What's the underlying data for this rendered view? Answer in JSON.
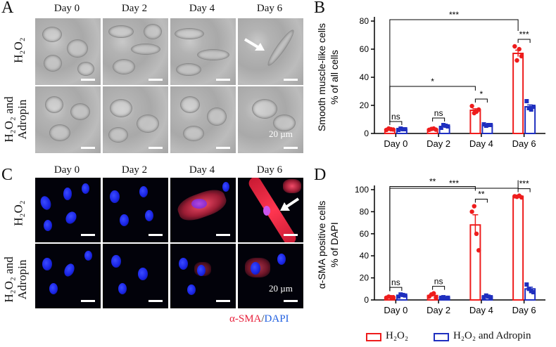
{
  "panels": {
    "A": {
      "letter": "A"
    },
    "B": {
      "letter": "B"
    },
    "C": {
      "letter": "C"
    },
    "D": {
      "letter": "D"
    }
  },
  "days": [
    "Day 0",
    "Day 2",
    "Day 4",
    "Day 6"
  ],
  "row_labels": {
    "h2o2": "H₂O₂",
    "h2o2_adropin_line1": "H₂O₂ and",
    "h2o2_adropin_line2": "Adropin"
  },
  "scale_text": "20 µm",
  "stain_label": {
    "sma": "α-SMA",
    "slash": "/",
    "dapi": "DAPI"
  },
  "colors": {
    "h2o2": "#ee1c1c",
    "adropin": "#1f2fbf",
    "sma": "#e8213c",
    "dapi": "#1a25e6"
  },
  "legend": {
    "h2o2": "H₂O₂",
    "adropin": "H₂O₂ and Adropin"
  },
  "chart_data": [
    {
      "type": "bar",
      "panel": "B",
      "title": "Smooth muscle-like cells",
      "ylabel": "% of all cells",
      "categories": [
        "Day 0",
        "Day 2",
        "Day 4",
        "Day 6"
      ],
      "ylim": [
        0,
        80
      ],
      "yticks": [
        0,
        20,
        40,
        60,
        80
      ],
      "series": [
        {
          "name": "H₂O₂",
          "values": [
            3,
            3,
            16.5,
            57
          ],
          "points": [
            [
              2.5,
              3.5,
              3,
              2.8
            ],
            [
              2.6,
              3.2,
              3.5,
              2.7
            ],
            [
              19.5,
              14.5,
              15.5,
              17
            ],
            [
              62,
              52,
              60,
              55
            ]
          ]
        },
        {
          "name": "H₂O₂ and Adropin",
          "values": [
            3,
            5,
            6,
            19
          ],
          "points": [
            [
              2.5,
              3.5,
              3,
              3
            ],
            [
              4,
              6,
              5.5,
              5
            ],
            [
              6.5,
              5.5,
              6,
              6
            ],
            [
              23,
              18,
              17,
              19
            ]
          ]
        }
      ],
      "significance": [
        {
          "label": "ns",
          "from": [
            0,
            0
          ],
          "to": [
            0,
            1
          ]
        },
        {
          "label": "ns",
          "from": [
            1,
            0
          ],
          "to": [
            1,
            1
          ]
        },
        {
          "label": "*",
          "from": [
            2,
            0
          ],
          "to": [
            2,
            1
          ]
        },
        {
          "label": "***",
          "from": [
            3,
            0
          ],
          "to": [
            3,
            1
          ]
        },
        {
          "label": "*",
          "from": [
            0,
            0
          ],
          "to": [
            2,
            0
          ]
        },
        {
          "label": "***",
          "from": [
            0,
            0
          ],
          "to": [
            3,
            0
          ]
        }
      ]
    },
    {
      "type": "bar",
      "panel": "D",
      "title": "α-SMA positive cells",
      "ylabel": "% of DAPI",
      "categories": [
        "Day 0",
        "Day 2",
        "Day 4",
        "Day 6"
      ],
      "ylim": [
        0,
        100
      ],
      "yticks": [
        0,
        20,
        40,
        60,
        80,
        100
      ],
      "series": [
        {
          "name": "H₂O₂",
          "values": [
            2.5,
            4,
            68,
            94
          ],
          "points": [
            [
              2,
              3,
              2.5,
              2.5
            ],
            [
              3,
              5,
              6,
              2
            ],
            [
              80,
              85,
              60,
              45
            ],
            [
              94,
              93.5,
              94.5,
              93
            ]
          ]
        },
        {
          "name": "H₂O₂ and Adropin",
          "values": [
            4,
            2,
            3,
            10
          ],
          "points": [
            [
              3,
              5,
              4.5,
              4
            ],
            [
              2,
              2.5,
              1.5,
              2
            ],
            [
              2.5,
              4,
              3,
              2.5
            ],
            [
              14,
              10,
              8,
              7
            ]
          ]
        }
      ],
      "significance": [
        {
          "label": "ns",
          "from": [
            0,
            0
          ],
          "to": [
            0,
            1
          ]
        },
        {
          "label": "ns",
          "from": [
            1,
            0
          ],
          "to": [
            1,
            1
          ]
        },
        {
          "label": "**",
          "from": [
            2,
            0
          ],
          "to": [
            2,
            1
          ]
        },
        {
          "label": "***",
          "from": [
            3,
            0
          ],
          "to": [
            3,
            1
          ]
        },
        {
          "label": "**",
          "from": [
            0,
            0
          ],
          "to": [
            2,
            0
          ]
        },
        {
          "label": "***",
          "from": [
            0,
            0
          ],
          "to": [
            3,
            0
          ]
        }
      ]
    }
  ]
}
